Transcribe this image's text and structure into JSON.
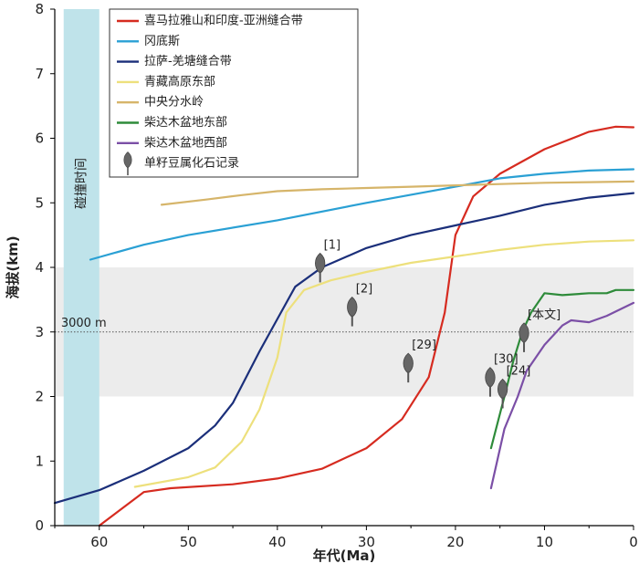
{
  "chart_data": {
    "type": "line",
    "xlabel": "年代(Ma)",
    "ylabel": "海拔(km)",
    "xlim": [
      65,
      0
    ],
    "ylim": [
      0,
      8
    ],
    "x_ticks": [
      "60",
      "50",
      "40",
      "30",
      "20",
      "10",
      "0"
    ],
    "y_ticks": [
      "0",
      "1",
      "2",
      "3",
      "4",
      "5",
      "6",
      "7",
      "8"
    ],
    "collision_band": {
      "label": "碰撞时间",
      "x_range": [
        64,
        60
      ],
      "color": "#bfe3ea"
    },
    "altitude_band": {
      "y_range": [
        2,
        4
      ],
      "color": "#ececec"
    },
    "reference_line": {
      "y": 3,
      "label": "3000 m"
    },
    "legend_position": "top-right",
    "series": [
      {
        "name": "喜马拉雅山和印度-亚洲缝合带",
        "color": "#d62b20",
        "points": [
          [
            60,
            0
          ],
          [
            55,
            0.52
          ],
          [
            52,
            0.58
          ],
          [
            45,
            0.64
          ],
          [
            40,
            0.73
          ],
          [
            35,
            0.88
          ],
          [
            30,
            1.2
          ],
          [
            26,
            1.65
          ],
          [
            23,
            2.3
          ],
          [
            21.2,
            3.3
          ],
          [
            20,
            4.5
          ],
          [
            18,
            5.1
          ],
          [
            15,
            5.45
          ],
          [
            10,
            5.83
          ],
          [
            5,
            6.1
          ],
          [
            2,
            6.18
          ],
          [
            0,
            6.17
          ]
        ]
      },
      {
        "name": "冈底斯",
        "color": "#2aa0d4",
        "points": [
          [
            61,
            4.12
          ],
          [
            55,
            4.35
          ],
          [
            50,
            4.5
          ],
          [
            40,
            4.73
          ],
          [
            30,
            5.0
          ],
          [
            20,
            5.25
          ],
          [
            15,
            5.38
          ],
          [
            10,
            5.45
          ],
          [
            5,
            5.5
          ],
          [
            0,
            5.52
          ]
        ]
      },
      {
        "name": "拉萨-羌塘缝合带",
        "color": "#1b2f7a",
        "points": [
          [
            65,
            0.35
          ],
          [
            60,
            0.55
          ],
          [
            55,
            0.85
          ],
          [
            50,
            1.2
          ],
          [
            47,
            1.55
          ],
          [
            45,
            1.9
          ],
          [
            42,
            2.7
          ],
          [
            40,
            3.2
          ],
          [
            38,
            3.7
          ],
          [
            35,
            4.0
          ],
          [
            30,
            4.3
          ],
          [
            25,
            4.5
          ],
          [
            20,
            4.65
          ],
          [
            15,
            4.8
          ],
          [
            10,
            4.97
          ],
          [
            5,
            5.08
          ],
          [
            0,
            5.15
          ]
        ]
      },
      {
        "name": "青藏高原东部",
        "color": "#ede07c",
        "points": [
          [
            56,
            0.6
          ],
          [
            50,
            0.75
          ],
          [
            47,
            0.9
          ],
          [
            44,
            1.3
          ],
          [
            42,
            1.8
          ],
          [
            40,
            2.6
          ],
          [
            39,
            3.3
          ],
          [
            37,
            3.65
          ],
          [
            34,
            3.8
          ],
          [
            30,
            3.93
          ],
          [
            25,
            4.07
          ],
          [
            20,
            4.17
          ],
          [
            15,
            4.27
          ],
          [
            10,
            4.35
          ],
          [
            5,
            4.4
          ],
          [
            0,
            4.42
          ]
        ]
      },
      {
        "name": "中央分水岭",
        "color": "#d6b56a",
        "points": [
          [
            53,
            4.97
          ],
          [
            48,
            5.05
          ],
          [
            44,
            5.12
          ],
          [
            40,
            5.18
          ],
          [
            35,
            5.21
          ],
          [
            30,
            5.23
          ],
          [
            25,
            5.25
          ],
          [
            20,
            5.27
          ],
          [
            15,
            5.29
          ],
          [
            10,
            5.31
          ],
          [
            5,
            5.32
          ],
          [
            0,
            5.33
          ]
        ]
      },
      {
        "name": "柴达木盆地东部",
        "color": "#2e8b3a",
        "points": [
          [
            16,
            1.2
          ],
          [
            14.5,
            2.0
          ],
          [
            13.5,
            2.55
          ],
          [
            12.5,
            3.0
          ],
          [
            11.5,
            3.3
          ],
          [
            10,
            3.6
          ],
          [
            8,
            3.57
          ],
          [
            5,
            3.6
          ],
          [
            3,
            3.6
          ],
          [
            2,
            3.65
          ],
          [
            0,
            3.65
          ]
        ]
      },
      {
        "name": "柴达木盆地西部",
        "color": "#7b4fa6",
        "points": [
          [
            16,
            0.58
          ],
          [
            14.5,
            1.5
          ],
          [
            13,
            2.0
          ],
          [
            12,
            2.4
          ],
          [
            10,
            2.8
          ],
          [
            8,
            3.1
          ],
          [
            7,
            3.18
          ],
          [
            5,
            3.15
          ],
          [
            3,
            3.25
          ],
          [
            0,
            3.45
          ]
        ]
      }
    ],
    "fossil_legend_label": "单籽豆属化石记录",
    "fossils": [
      {
        "ref": "[1]",
        "x": 35.2,
        "y": 4.05
      },
      {
        "ref": "[2]",
        "x": 31.6,
        "y": 3.37
      },
      {
        "ref": "[29]",
        "x": 25.3,
        "y": 2.5
      },
      {
        "ref": "[30]",
        "x": 16.1,
        "y": 2.28
      },
      {
        "ref": "[24]",
        "x": 14.7,
        "y": 2.1
      },
      {
        "ref": "[本文]",
        "x": 12.3,
        "y": 2.97
      }
    ]
  }
}
